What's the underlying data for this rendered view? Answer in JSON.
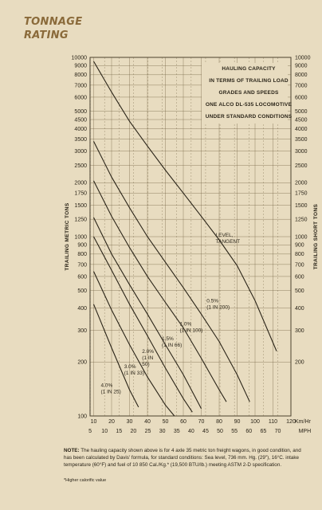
{
  "page": {
    "heading_line1": "TONNAGE",
    "heading_line2": "RATING",
    "note_label": "NOTE:",
    "note_text": "The hauling capacity shown above is for 4 axle 35 metric ton freight wagons, in good condition, and has been calculated by Davis' formula, for standard conditions: Sea level, 736 mm. Hg. (29\"), 16°C. intake temperature (60°F) and fuel of 10 850 Cal./Kg.* (19,500 BTU/lb.) meeting ASTM 2-D specification.",
    "footnote": "*Higher calorific value"
  },
  "chart_data": {
    "type": "line",
    "title_lines": [
      "HAULING CAPACITY",
      "IN TERMS OF TRAILING LOAD",
      "GRADES AND SPEEDS",
      "ONE ALCO DL-535 LOCOMOTIVE",
      "UNDER STANDARD CONDITIONS"
    ],
    "ylabel_left": "TRAILING METRIC TONS",
    "ylabel_right": "TRAILING SHORT TONS",
    "xlabel_kmh": "Km/Hr",
    "xlabel_mph": "MPH",
    "y_scale": "log",
    "ylim": [
      100,
      10000
    ],
    "y_ticks_left": [
      10000,
      9000,
      8000,
      7000,
      6000,
      5000,
      4500,
      4000,
      3500,
      3000,
      2500,
      2000,
      1750,
      1500,
      1250,
      1000,
      900,
      800,
      700,
      600,
      500,
      400,
      300,
      200,
      100
    ],
    "y_ticks_right": [
      10000,
      9000,
      8000,
      7000,
      6000,
      5000,
      4500,
      4000,
      3500,
      3000,
      2500,
      2000,
      1750,
      1500,
      1250,
      1000,
      900,
      800,
      700,
      600,
      500,
      400,
      300,
      200
    ],
    "xlim_kmh": [
      8,
      120
    ],
    "x_ticks_kmh": [
      10,
      20,
      30,
      40,
      50,
      60,
      70,
      80,
      90,
      100,
      110,
      120
    ],
    "x_ticks_mph": [
      5,
      10,
      15,
      20,
      25,
      30,
      35,
      40,
      45,
      50,
      55,
      60,
      65,
      70,
      75
    ],
    "grid": true,
    "series": [
      {
        "name": "LEVEL, TANGENT",
        "x": [
          10,
          20,
          30,
          40,
          50,
          60,
          70,
          80,
          90,
          100,
          112
        ],
        "y": [
          9500,
          6400,
          4400,
          3200,
          2350,
          1750,
          1300,
          960,
          690,
          440,
          230
        ]
      },
      {
        "name": "0.5% (1 IN 200)",
        "x": [
          10,
          20,
          30,
          40,
          50,
          60,
          70,
          80,
          90,
          97
        ],
        "y": [
          3400,
          2150,
          1450,
          1000,
          720,
          520,
          370,
          260,
          170,
          120
        ]
      },
      {
        "name": "1.0% (1 IN 100)",
        "x": [
          10,
          20,
          30,
          40,
          50,
          60,
          70,
          80,
          84
        ],
        "y": [
          2050,
          1300,
          870,
          600,
          430,
          310,
          210,
          140,
          120
        ]
      },
      {
        "name": "1.5% (1 IN 66)",
        "x": [
          10,
          20,
          30,
          40,
          50,
          60,
          70
        ],
        "y": [
          1280,
          800,
          540,
          370,
          250,
          170,
          110
        ]
      },
      {
        "name": "2.0% (1 IN 50)",
        "x": [
          10,
          20,
          30,
          40,
          50,
          60,
          65
        ],
        "y": [
          1000,
          650,
          420,
          280,
          185,
          125,
          105
        ]
      },
      {
        "name": "3.0% (1 IN 33)",
        "x": [
          10,
          20,
          30,
          40,
          50,
          55
        ],
        "y": [
          640,
          390,
          250,
          165,
          115,
          100
        ]
      },
      {
        "name": "4.0% (1 IN 25)",
        "x": [
          10,
          20,
          30,
          35
        ],
        "y": [
          420,
          240,
          140,
          112
        ]
      }
    ],
    "curve_labels": [
      {
        "lines": [
          "LEVEL,",
          "TANGENT"
        ]
      },
      {
        "lines": [
          "0.5%",
          "(1 IN 200)"
        ]
      },
      {
        "lines": [
          "1.0%",
          "(1 IN 100)"
        ]
      },
      {
        "lines": [
          "1.5%",
          "(1 IN 66)"
        ]
      },
      {
        "lines": [
          "2.0%",
          "(1 IN",
          "50)"
        ]
      },
      {
        "lines": [
          "3.0%",
          "(1 IN 33)"
        ]
      },
      {
        "lines": [
          "4.0%",
          "(1 IN 25)"
        ]
      }
    ]
  }
}
